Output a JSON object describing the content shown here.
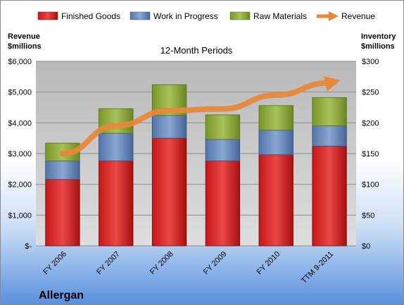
{
  "chart_data": {
    "type": "bar",
    "subtitle": "12-Month Periods",
    "company": "Allergan",
    "categories": [
      "FY 2006",
      "FY 2007",
      "FY 2008",
      "FY 2009",
      "FY 2010",
      "TTM 9-2011"
    ],
    "series": [
      {
        "name": "Finished Goods",
        "axis": "right",
        "color": "#cc1f1f",
        "values": [
          108,
          138,
          175,
          138,
          148,
          162
        ]
      },
      {
        "name": "Work in Progress",
        "axis": "right",
        "color": "#5b7fb8",
        "values": [
          30,
          45,
          37,
          35,
          40,
          33
        ]
      },
      {
        "name": "Raw Materials",
        "axis": "right",
        "color": "#86a32e",
        "values": [
          29,
          40,
          50,
          40,
          40,
          46
        ]
      },
      {
        "name": "Revenue",
        "axis": "left",
        "type": "line",
        "color": "#e9873a",
        "values": [
          3000,
          3900,
          4400,
          4450,
          4900,
          5300
        ]
      }
    ],
    "left_axis": {
      "label_line1": "Revenue",
      "label_line2": "$millions",
      "min": 0,
      "max": 6000,
      "tick_labels": [
        "$-",
        "$1,000",
        "$2,000",
        "$3,000",
        "$4,000",
        "$5,000",
        "$6,000"
      ]
    },
    "right_axis": {
      "label_line1": "Inventory",
      "label_line2": "$millions",
      "min": 0,
      "max": 300,
      "tick_labels": [
        "$0",
        "$50",
        "$100",
        "$150",
        "$200",
        "$250",
        "$300"
      ]
    },
    "grid": true,
    "legend_position": "top"
  }
}
